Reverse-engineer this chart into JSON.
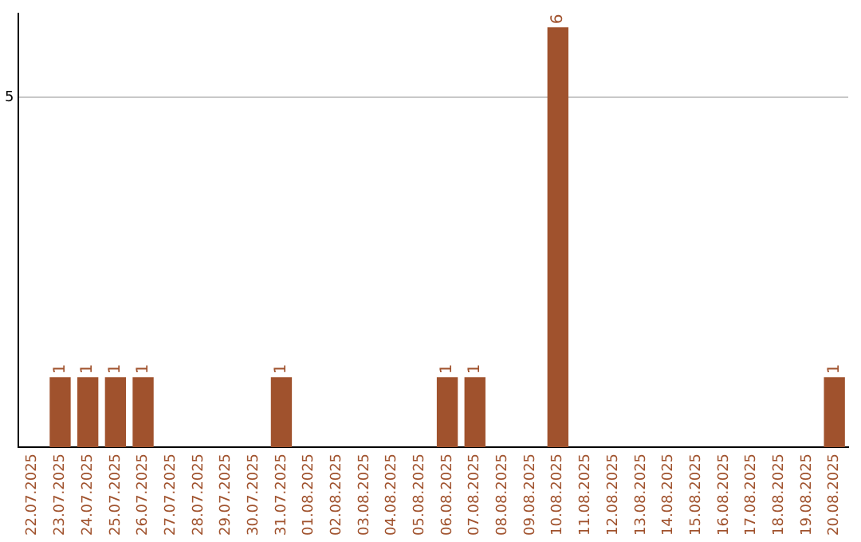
{
  "chart_data": {
    "type": "bar",
    "categories": [
      "22.07.2025",
      "23.07.2025",
      "24.07.2025",
      "25.07.2025",
      "26.07.2025",
      "27.07.2025",
      "28.07.2025",
      "29.07.2025",
      "30.07.2025",
      "31.07.2025",
      "01.08.2025",
      "02.08.2025",
      "03.08.2025",
      "04.08.2025",
      "05.08.2025",
      "06.08.2025",
      "07.08.2025",
      "08.08.2025",
      "09.08.2025",
      "10.08.2025",
      "11.08.2025",
      "12.08.2025",
      "13.08.2025",
      "14.08.2025",
      "15.08.2025",
      "16.08.2025",
      "17.08.2025",
      "18.08.2025",
      "19.08.2025",
      "20.08.2025"
    ],
    "values": [
      0,
      1,
      1,
      1,
      1,
      0,
      0,
      0,
      0,
      1,
      0,
      0,
      0,
      0,
      0,
      1,
      1,
      0,
      0,
      6,
      0,
      0,
      0,
      0,
      0,
      0,
      0,
      0,
      0,
      1
    ],
    "color": "#a0522d",
    "value_labels": [
      null,
      "1",
      "1",
      "1",
      "1",
      null,
      null,
      null,
      null,
      "1",
      null,
      null,
      null,
      null,
      null,
      "1",
      "1",
      null,
      null,
      "6",
      null,
      null,
      null,
      null,
      null,
      null,
      null,
      null,
      null,
      "1"
    ],
    "ylim": [
      0,
      6.2
    ],
    "yticks": [
      5
    ],
    "grid": "y",
    "legend": false
  }
}
